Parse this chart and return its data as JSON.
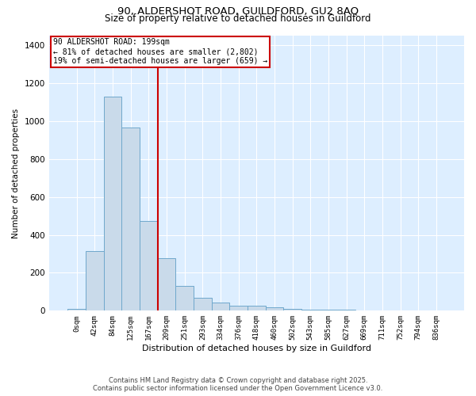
{
  "title1": "90, ALDERSHOT ROAD, GUILDFORD, GU2 8AQ",
  "title2": "Size of property relative to detached houses in Guildford",
  "xlabel": "Distribution of detached houses by size in Guildford",
  "ylabel": "Number of detached properties",
  "bin_labels": [
    "0sqm",
    "42sqm",
    "84sqm",
    "125sqm",
    "167sqm",
    "209sqm",
    "251sqm",
    "293sqm",
    "334sqm",
    "376sqm",
    "418sqm",
    "460sqm",
    "502sqm",
    "543sqm",
    "585sqm",
    "627sqm",
    "669sqm",
    "711sqm",
    "752sqm",
    "794sqm",
    "836sqm"
  ],
  "bar_values": [
    10,
    315,
    1130,
    965,
    475,
    275,
    130,
    70,
    45,
    25,
    25,
    20,
    10,
    5,
    5,
    5,
    2,
    2,
    2,
    2,
    2
  ],
  "bar_color": "#c9daea",
  "bar_edgecolor": "#6fa8cc",
  "vline_x": 4.5,
  "vline_color": "#cc0000",
  "annotation_line1": "90 ALDERSHOT ROAD: 199sqm",
  "annotation_line2": "← 81% of detached houses are smaller (2,802)",
  "annotation_line3": "19% of semi-detached houses are larger (659) →",
  "annotation_box_edgecolor": "#cc0000",
  "annotation_box_facecolor": "#ffffff",
  "ylim": [
    0,
    1450
  ],
  "yticks": [
    0,
    200,
    400,
    600,
    800,
    1000,
    1200,
    1400
  ],
  "footer1": "Contains HM Land Registry data © Crown copyright and database right 2025.",
  "footer2": "Contains public sector information licensed under the Open Government Licence v3.0.",
  "plot_bg_color": "#ddeeff",
  "fig_bg_color": "#ffffff",
  "grid_color": "#ffffff"
}
